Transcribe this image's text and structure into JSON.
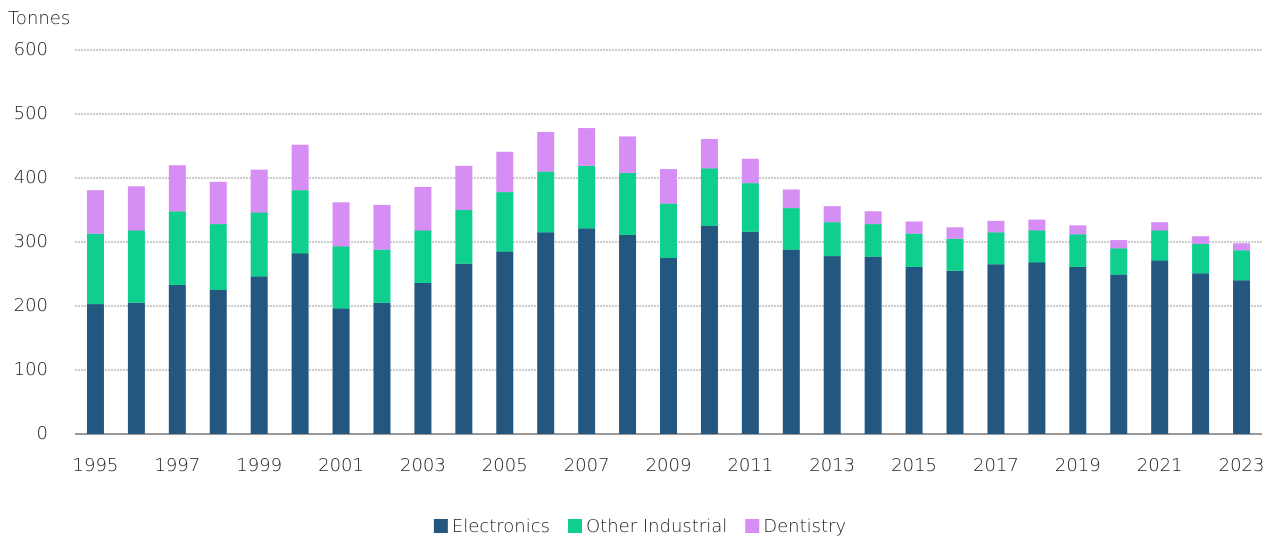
{
  "chart_data": {
    "type": "stacked_bar",
    "y_label": "Tonnes",
    "categories": [
      "1995",
      null,
      "1997",
      null,
      "1999",
      null,
      "2001",
      null,
      "2003",
      null,
      "2005",
      null,
      "2007",
      null,
      "2009",
      null,
      "2011",
      null,
      "2013",
      null,
      "2015",
      null,
      "2017",
      null,
      "2019",
      null,
      "2021",
      null,
      "2023"
    ],
    "series": [
      {
        "name": "Electronics",
        "color": "#24577f",
        "values": [
          203,
          205,
          233,
          225,
          246,
          282,
          196,
          205,
          236,
          266,
          285,
          315,
          321,
          311,
          275,
          325,
          316,
          288,
          278,
          277,
          261,
          255,
          265,
          268,
          261,
          249,
          271,
          251,
          240
        ]
      },
      {
        "name": "Other Industrial",
        "color": "#0fcf8f",
        "values": [
          110,
          113,
          115,
          103,
          100,
          99,
          97,
          83,
          82,
          84,
          93,
          95,
          98,
          97,
          85,
          90,
          76,
          65,
          53,
          51,
          52,
          50,
          50,
          50,
          51,
          41,
          47,
          46,
          47
        ]
      },
      {
        "name": "Dentistry",
        "color": "#d68ef5",
        "values": [
          68,
          69,
          72,
          66,
          67,
          71,
          69,
          70,
          68,
          69,
          63,
          62,
          59,
          57,
          54,
          46,
          38,
          29,
          25,
          20,
          19,
          18,
          18,
          17,
          14,
          13,
          13,
          12,
          11
        ]
      }
    ],
    "ylim": [
      0,
      600
    ],
    "yticks": [
      0,
      100,
      200,
      300,
      400,
      500,
      600
    ],
    "grid": true,
    "legend": "bottom"
  }
}
